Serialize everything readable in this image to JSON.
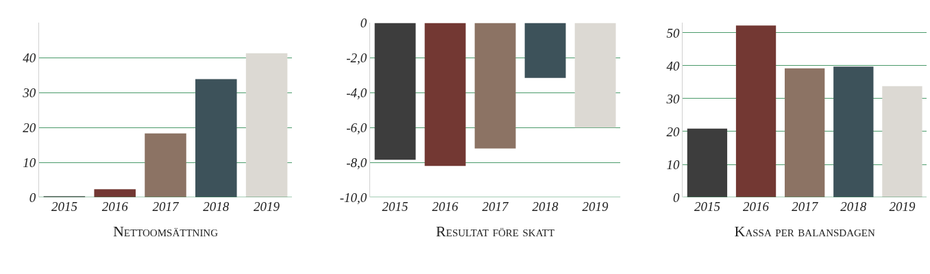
{
  "chart_data": [
    {
      "type": "bar",
      "xlabel": "Nettoomsättning",
      "categories": [
        "2015",
        "2016",
        "2017",
        "2018",
        "2019"
      ],
      "colors": [
        "#3d3d3d",
        "#733833",
        "#8c7364",
        "#3d525a",
        "#dcd9d3"
      ],
      "values": [
        0.3,
        2.3,
        18.3,
        33.9,
        41.3
      ],
      "ylim": [
        0,
        50
      ],
      "yticks": [
        0,
        10,
        20,
        30,
        40
      ],
      "grid": "y"
    },
    {
      "type": "bar",
      "xlabel": "Resultat före skatt",
      "categories": [
        "2015",
        "2016",
        "2017",
        "2018",
        "2019"
      ],
      "colors": [
        "#3d3d3d",
        "#733833",
        "#8c7364",
        "#3d525a",
        "#dcd9d3"
      ],
      "values": [
        -7.85,
        -8.2,
        -7.2,
        -3.15,
        -6.0
      ],
      "ylim": [
        -10,
        0
      ],
      "yticks": [
        {
          "value": -10,
          "label": "-10,0"
        },
        {
          "value": -8,
          "label": "-8,0"
        },
        {
          "value": -6,
          "label": "-6,0"
        },
        {
          "value": -4,
          "label": "-4,0"
        },
        {
          "value": -2,
          "label": "-2,0"
        },
        0
      ],
      "grid": "y"
    },
    {
      "type": "bar",
      "xlabel": "Kassa per balansdagen",
      "categories": [
        "2015",
        "2016",
        "2017",
        "2018",
        "2019"
      ],
      "colors": [
        "#3d3d3d",
        "#733833",
        "#8c7364",
        "#3d525a",
        "#dcd9d3"
      ],
      "values": [
        20.9,
        52.2,
        39.2,
        39.7,
        33.8
      ],
      "ylim": [
        0,
        53
      ],
      "yticks": [
        0,
        10,
        20,
        30,
        40,
        50
      ],
      "grid": "y"
    }
  ]
}
